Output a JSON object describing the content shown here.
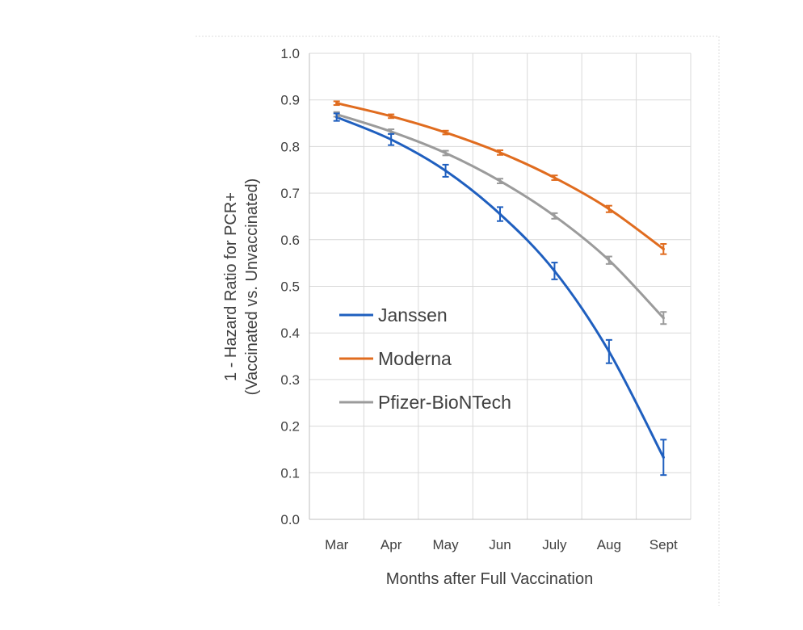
{
  "chart_data": {
    "type": "line",
    "title": "",
    "xlabel": "Months after Full Vaccination",
    "ylabel_lines": [
      "1 - Hazard Ratio for PCR+",
      "(Vaccinated vs. Unvaccinated)"
    ],
    "categories": [
      "Mar",
      "Apr",
      "May",
      "Jun",
      "July",
      "Aug",
      "Sept"
    ],
    "ylim": [
      0,
      1
    ],
    "yticks": [
      "0.0",
      "0.1",
      "0.2",
      "0.3",
      "0.4",
      "0.5",
      "0.6",
      "0.7",
      "0.8",
      "0.9",
      "1.0"
    ],
    "grid": true,
    "legend_position": "lower-left",
    "series": [
      {
        "name": "Janssen",
        "color": "#1f5fbf",
        "values": [
          0.863,
          0.815,
          0.748,
          0.655,
          0.533,
          0.36,
          0.133
        ],
        "error_low": [
          0.855,
          0.803,
          0.735,
          0.64,
          0.515,
          0.335,
          0.095
        ],
        "error_high": [
          0.871,
          0.827,
          0.761,
          0.67,
          0.551,
          0.385,
          0.171
        ]
      },
      {
        "name": "Moderna",
        "color": "#e06c1f",
        "values": [
          0.893,
          0.865,
          0.83,
          0.787,
          0.733,
          0.666,
          0.58
        ],
        "error_low": [
          0.889,
          0.861,
          0.826,
          0.782,
          0.728,
          0.659,
          0.569
        ],
        "error_high": [
          0.897,
          0.869,
          0.834,
          0.792,
          0.738,
          0.673,
          0.591
        ]
      },
      {
        "name": "Pfizer-BioNTech",
        "color": "#9b9b9b",
        "values": [
          0.869,
          0.832,
          0.786,
          0.726,
          0.651,
          0.556,
          0.432
        ],
        "error_low": [
          0.864,
          0.827,
          0.781,
          0.721,
          0.645,
          0.548,
          0.419
        ],
        "error_high": [
          0.874,
          0.837,
          0.791,
          0.731,
          0.657,
          0.564,
          0.445
        ]
      }
    ]
  }
}
